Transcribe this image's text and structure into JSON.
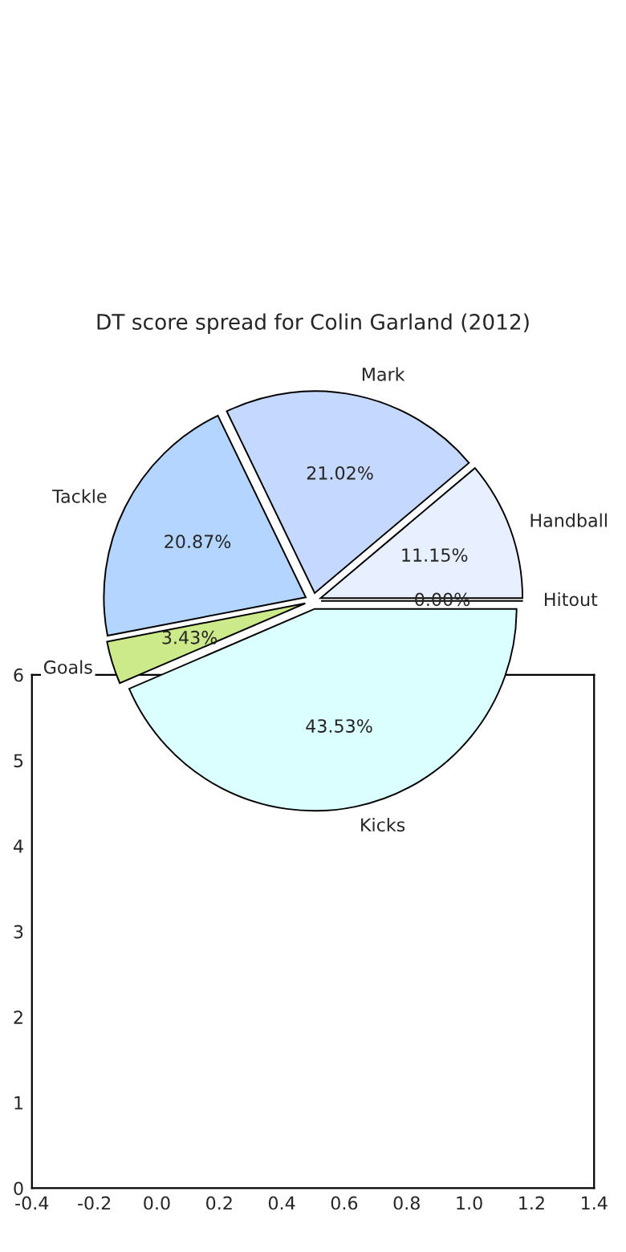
{
  "chart_data": [
    {
      "type": "pie",
      "title": "DT score spread for Colin Garland (2012)",
      "categories": [
        "Handball",
        "Mark",
        "Tackle",
        "Goals",
        "Kicks",
        "Hitout"
      ],
      "values": [
        11.15,
        21.02,
        20.87,
        3.43,
        43.53,
        0.0
      ],
      "value_labels": [
        "11.15%",
        "21.02%",
        "20.87%",
        "3.43%",
        "43.53%",
        "0.00%"
      ],
      "colors": [
        "#e8f0ff",
        "#c5d8ff",
        "#b3d5ff",
        "#cdea8a",
        "#dbffff",
        "#ffffff"
      ]
    },
    {
      "type": "scatter",
      "xlim": [
        -0.4,
        1.4
      ],
      "xticks": [
        -0.4,
        -0.2,
        {
          "value": 0,
          "label": "0.0"
        },
        0.2,
        0.4,
        0.6,
        0.8,
        {
          "value": 1,
          "label": "1.0"
        },
        1.2,
        1.4
      ],
      "ylim": [
        0,
        6
      ],
      "yticks": [
        0,
        1,
        2,
        3,
        4,
        5,
        6
      ]
    }
  ]
}
